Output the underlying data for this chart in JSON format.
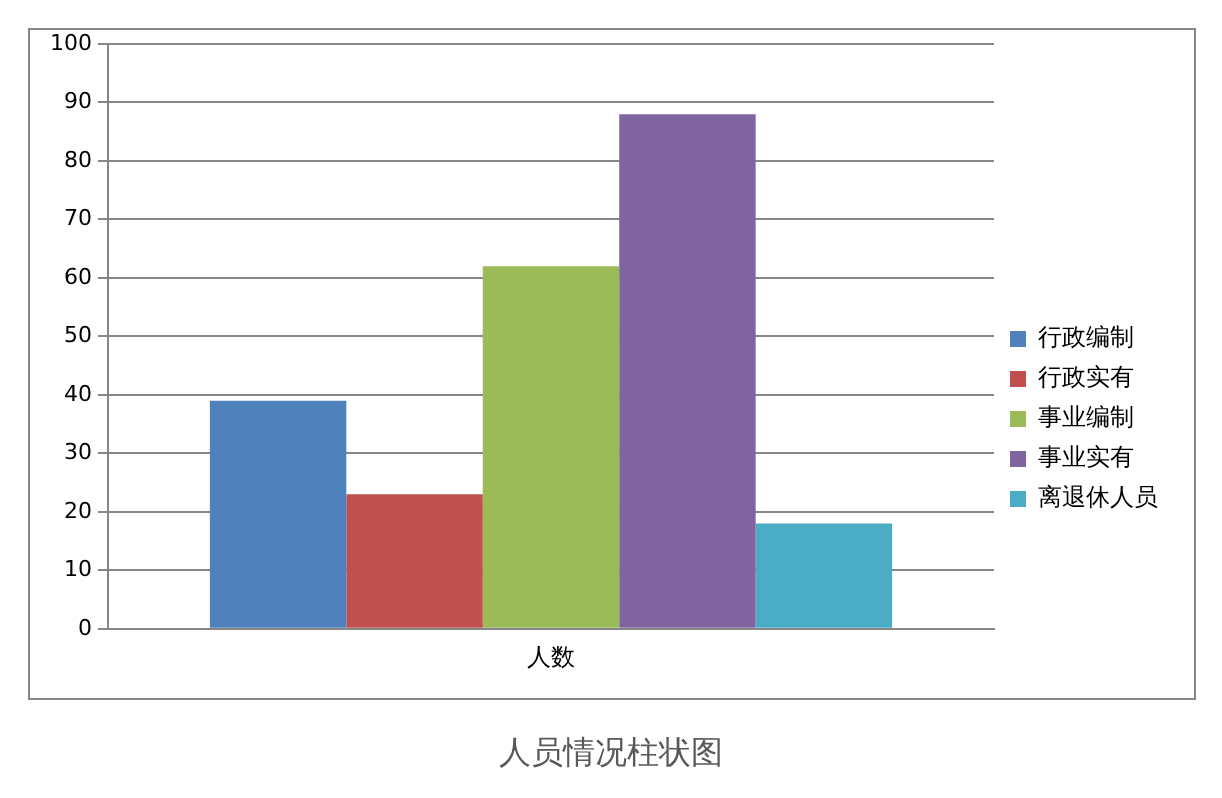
{
  "chart_data": {
    "type": "bar",
    "title": "人员情况柱状图",
    "categories": [
      "人数"
    ],
    "series": [
      {
        "name": "行政编制",
        "color": "#4f81bd",
        "values": [
          39
        ]
      },
      {
        "name": "行政实有",
        "color": "#c0504d",
        "values": [
          23
        ]
      },
      {
        "name": "事业编制",
        "color": "#9bbb59",
        "values": [
          62
        ]
      },
      {
        "name": "事业实有",
        "color": "#8064a2",
        "values": [
          88
        ]
      },
      {
        "name": "离退休人员",
        "color": "#4bacc6",
        "values": [
          18
        ]
      }
    ],
    "ylim": [
      0,
      100
    ],
    "yticks": [
      0,
      10,
      20,
      30,
      40,
      50,
      60,
      70,
      80,
      90,
      100
    ],
    "grid": "y",
    "legend": "right"
  }
}
